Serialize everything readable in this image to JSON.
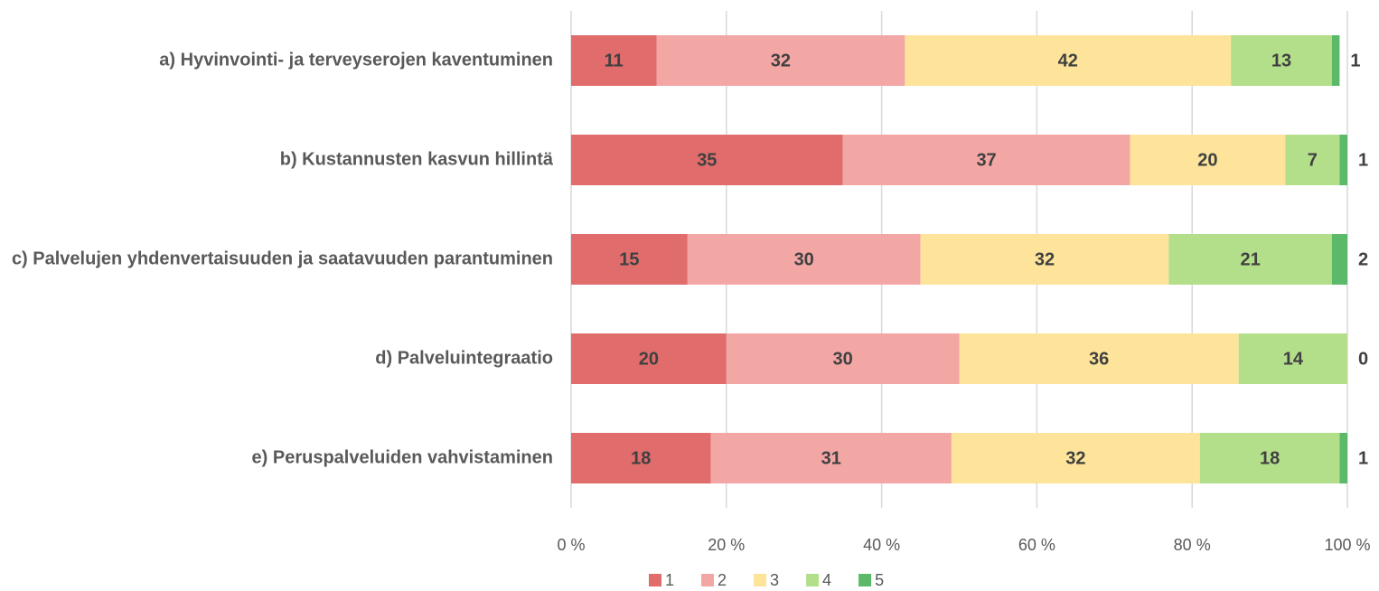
{
  "chart_data": {
    "type": "bar",
    "orientation": "horizontal",
    "stacked": true,
    "categories": [
      "a) Hyvinvointi- ja terveyserojen kaventuminen",
      "b) Kustannusten kasvun hillintä",
      "c) Palvelujen yhdenvertaisuuden ja saatavuuden parantuminen",
      "d) Palveluintegraatio",
      "e) Peruspalveluiden vahvistaminen"
    ],
    "series": [
      {
        "name": "1",
        "color": "#e06c6c",
        "values": [
          11,
          35,
          15,
          20,
          18
        ]
      },
      {
        "name": "2",
        "color": "#f2a7a5",
        "values": [
          32,
          37,
          30,
          30,
          31
        ]
      },
      {
        "name": "3",
        "color": "#fde49a",
        "values": [
          42,
          20,
          32,
          36,
          32
        ]
      },
      {
        "name": "4",
        "color": "#b3df8b",
        "values": [
          13,
          7,
          21,
          14,
          18
        ]
      },
      {
        "name": "5",
        "color": "#5cb96a",
        "values": [
          1,
          1,
          2,
          0,
          1
        ]
      }
    ],
    "xlim": [
      0,
      100
    ],
    "xticks": [
      {
        "value": 0,
        "label": "0 %"
      },
      {
        "value": 20,
        "label": "20 %"
      },
      {
        "value": 40,
        "label": "40 %"
      },
      {
        "value": 60,
        "label": "60 %"
      },
      {
        "value": 80,
        "label": "80 %"
      },
      {
        "value": 100,
        "label": "100 %"
      }
    ],
    "grid": true,
    "legend": "bottom"
  }
}
